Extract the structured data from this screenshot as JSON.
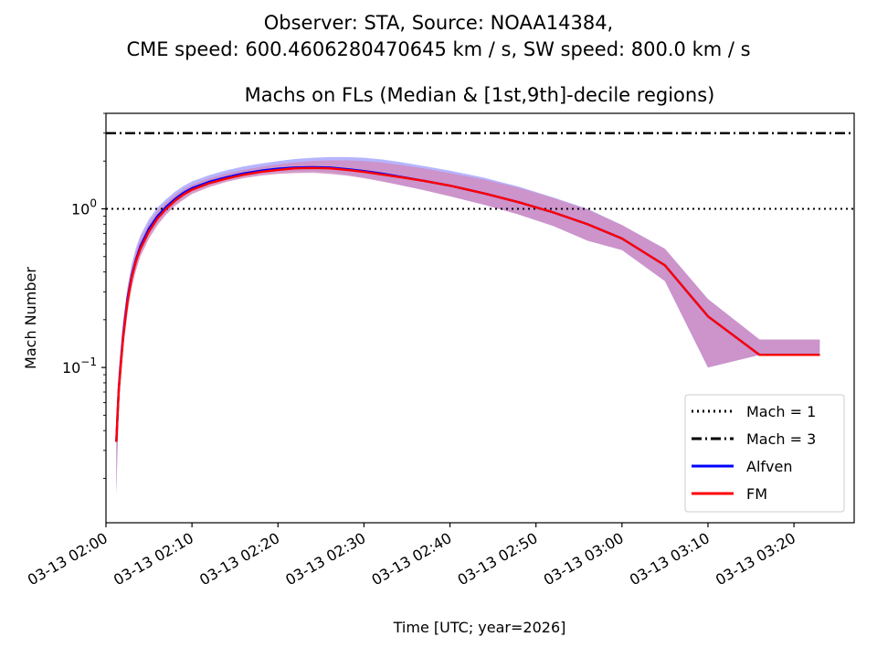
{
  "figure": {
    "suptitle_line1": "Observer: STA, Source: NOAA14384,",
    "suptitle_line2": "CME speed: 600.4606280470645 km / s, SW speed: 800.0 km / s"
  },
  "chart_data": {
    "type": "line",
    "title": "Machs on FLs (Median & [1st,9th]-decile regions)",
    "xlabel": "Time [UTC; year=2026]",
    "ylabel": "Mach Number",
    "yscale": "log",
    "ylim": [
      0.0105,
      4.0
    ],
    "xlim_minutes": [
      0,
      87
    ],
    "x_unit": "minutes after 03-13 02:00 UTC",
    "x_ticks": [
      {
        "minutes": 0,
        "label": "03-13 02:00"
      },
      {
        "minutes": 10,
        "label": "03-13 02:10"
      },
      {
        "minutes": 20,
        "label": "03-13 02:20"
      },
      {
        "minutes": 30,
        "label": "03-13 02:30"
      },
      {
        "minutes": 40,
        "label": "03-13 02:40"
      },
      {
        "minutes": 50,
        "label": "03-13 02:50"
      },
      {
        "minutes": 60,
        "label": "03-13 03:00"
      },
      {
        "minutes": 70,
        "label": "03-13 03:10"
      },
      {
        "minutes": 80,
        "label": "03-13 03:20"
      }
    ],
    "y_ticks": [
      {
        "value": 1,
        "base": "10",
        "exp": "0"
      },
      {
        "value": 0.1,
        "base": "10",
        "exp": "−1"
      }
    ],
    "reference_lines": [
      {
        "name": "Mach = 1",
        "value": 1,
        "style": "dotted",
        "color": "#000000"
      },
      {
        "name": "Mach = 3",
        "value": 3,
        "style": "dashdot",
        "color": "#000000"
      }
    ],
    "series": [
      {
        "name": "Alfven",
        "color": "#0000ff",
        "band_color": "#9c9cff",
        "x": [
          1.2,
          1.5,
          2.0,
          2.5,
          3.0,
          3.5,
          4.0,
          5.0,
          6.0,
          7.0,
          8.0,
          9.0,
          10.0,
          12.0,
          14.0,
          16.0,
          18.0,
          20.0,
          22.0,
          24.0,
          26.0,
          28.0,
          30.0,
          32.0,
          34.0,
          37.0,
          40.0,
          44.0,
          48.0,
          52.0,
          56.0,
          60.0,
          65.0,
          70.0,
          76.0,
          83.0
        ],
        "median": [
          0.034,
          0.075,
          0.16,
          0.27,
          0.38,
          0.48,
          0.58,
          0.75,
          0.9,
          1.03,
          1.15,
          1.26,
          1.35,
          1.48,
          1.58,
          1.67,
          1.74,
          1.79,
          1.82,
          1.83,
          1.82,
          1.78,
          1.73,
          1.67,
          1.6,
          1.5,
          1.4,
          1.25,
          1.1,
          0.95,
          0.8,
          0.65,
          0.44,
          0.21,
          0.12,
          0.12
        ],
        "low": [
          0.016,
          0.06,
          0.14,
          0.24,
          0.34,
          0.43,
          0.52,
          0.68,
          0.82,
          0.95,
          1.07,
          1.18,
          1.28,
          1.41,
          1.52,
          1.6,
          1.67,
          1.71,
          1.73,
          1.73,
          1.7,
          1.65,
          1.58,
          1.51,
          1.42,
          1.31,
          1.2,
          1.06,
          0.92,
          0.78,
          0.63,
          0.55,
          0.35,
          0.1,
          0.12,
          0.12
        ],
        "high": [
          0.05,
          0.1,
          0.2,
          0.32,
          0.45,
          0.57,
          0.68,
          0.86,
          1.02,
          1.15,
          1.28,
          1.39,
          1.49,
          1.63,
          1.75,
          1.85,
          1.93,
          2.0,
          2.06,
          2.1,
          2.12,
          2.12,
          2.1,
          2.05,
          1.98,
          1.86,
          1.74,
          1.57,
          1.38,
          1.18,
          1.0,
          0.79,
          0.56,
          0.27,
          0.15,
          0.15
        ]
      },
      {
        "name": "FM",
        "color": "#ff0000",
        "band_color": "#d08ec2",
        "x": [
          1.2,
          1.5,
          2.0,
          2.5,
          3.0,
          3.5,
          4.0,
          5.0,
          6.0,
          7.0,
          8.0,
          9.0,
          10.0,
          12.0,
          14.0,
          16.0,
          18.0,
          20.0,
          22.0,
          24.0,
          26.0,
          28.0,
          30.0,
          32.0,
          34.0,
          37.0,
          40.0,
          44.0,
          48.0,
          52.0,
          56.0,
          60.0,
          65.0,
          70.0,
          76.0,
          83.0
        ],
        "median": [
          0.034,
          0.074,
          0.155,
          0.26,
          0.37,
          0.47,
          0.56,
          0.72,
          0.87,
          1.0,
          1.12,
          1.23,
          1.32,
          1.45,
          1.55,
          1.64,
          1.71,
          1.76,
          1.8,
          1.81,
          1.8,
          1.76,
          1.71,
          1.65,
          1.59,
          1.5,
          1.4,
          1.25,
          1.1,
          0.95,
          0.8,
          0.65,
          0.44,
          0.21,
          0.12,
          0.12
        ],
        "low": [
          0.016,
          0.058,
          0.13,
          0.22,
          0.32,
          0.41,
          0.5,
          0.65,
          0.79,
          0.92,
          1.04,
          1.14,
          1.24,
          1.37,
          1.48,
          1.56,
          1.62,
          1.66,
          1.68,
          1.69,
          1.66,
          1.62,
          1.56,
          1.49,
          1.42,
          1.31,
          1.2,
          1.06,
          0.92,
          0.78,
          0.63,
          0.55,
          0.35,
          0.1,
          0.12,
          0.12
        ],
        "high": [
          0.05,
          0.096,
          0.19,
          0.31,
          0.43,
          0.54,
          0.64,
          0.81,
          0.97,
          1.1,
          1.22,
          1.33,
          1.42,
          1.56,
          1.67,
          1.76,
          1.84,
          1.91,
          1.96,
          2.0,
          2.02,
          2.02,
          2.0,
          1.96,
          1.9,
          1.8,
          1.68,
          1.53,
          1.36,
          1.17,
          0.99,
          0.79,
          0.56,
          0.27,
          0.15,
          0.15
        ]
      }
    ],
    "legend": {
      "location": "lower-right",
      "entries": [
        {
          "label": "Mach = 1",
          "style": "dotted",
          "color": "#000000"
        },
        {
          "label": "Mach = 3",
          "style": "dashdot",
          "color": "#000000"
        },
        {
          "label": "Alfven",
          "style": "solid",
          "color": "#0000ff"
        },
        {
          "label": "FM",
          "style": "solid",
          "color": "#ff0000"
        }
      ]
    }
  }
}
